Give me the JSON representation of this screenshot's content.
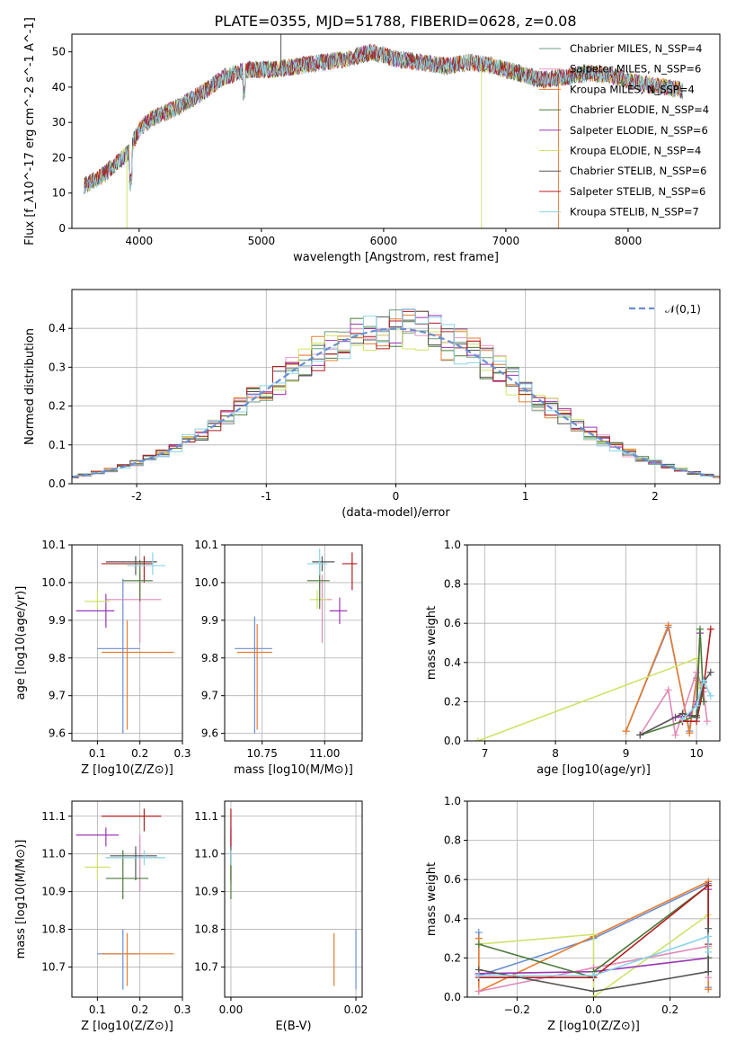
{
  "figure": {
    "title": "PLATE=0355, MJD=51788, FIBERID=0628, z=0.08"
  },
  "colors": {
    "c1": "#6b9a7f",
    "c2": "#e89ac8",
    "c3": "#e87c2f",
    "c4": "#4c7a3a",
    "c5": "#9b36b6",
    "c6": "#cde36a",
    "c7": "#555555",
    "c8": "#b31d20",
    "c9": "#8ad4e8",
    "blue": "#6a8fd0",
    "pink": "#e089b8",
    "grid": "#b0b0b0"
  },
  "chart_data": [
    {
      "id": "spectrum",
      "type": "line",
      "title": "PLATE=0355, MJD=51788, FIBERID=0628, z=0.08",
      "xlabel": "wavelength [Angstrom, rest frame]",
      "ylabel": "Flux [f_λ10^-17 erg cm^-2 s^-1 A^-1]",
      "xlim": [
        3450,
        8750
      ],
      "ylim": [
        0,
        55
      ],
      "xticks": [
        4000,
        5000,
        6000,
        7000,
        8000
      ],
      "yticks": [
        0,
        10,
        20,
        30,
        40,
        50
      ],
      "grid": false,
      "legend_position": "top-right",
      "legend": [
        "Chabrier MILES, N_SSP=4",
        "Salpeter MILES, N_SSP=6",
        "Kroupa MILES, N_SSP=4",
        "Chabrier ELODIE, N_SSP=4",
        "Salpeter ELODIE, N_SSP=6",
        "Kroupa ELODIE, N_SSP=4",
        "Chabrier STELIB, N_SSP=6",
        "Salpeter STELIB, N_SSP=6",
        "Kroupa STELIB, N_SSP=7"
      ],
      "continuum": {
        "x": [
          3550,
          3700,
          3900,
          4000,
          4100,
          4300,
          4500,
          4700,
          4900,
          5100,
          5300,
          5500,
          5700,
          5900,
          6100,
          6300,
          6500,
          6700,
          6900,
          7100,
          7300,
          7500,
          7700,
          7900,
          8100,
          8300,
          8450
        ],
        "y": [
          12,
          15,
          21,
          28,
          31,
          34,
          38,
          43,
          45,
          45,
          46,
          47,
          48,
          50,
          48,
          47,
          46,
          47,
          46,
          44,
          42,
          43,
          44,
          43,
          41,
          40,
          39
        ]
      },
      "features": [
        {
          "x": 5160,
          "y": 55,
          "series": "Chabrier STELIB"
        },
        {
          "x": 6800,
          "y": 0,
          "series": "Kroupa ELODIE"
        },
        {
          "x": 7430,
          "y": 0,
          "series": "Kroupa MILES"
        },
        {
          "x": 3900,
          "y": 0,
          "series": "Kroupa ELODIE"
        }
      ]
    },
    {
      "id": "residuals",
      "type": "step",
      "xlabel": "(data-model)/error",
      "ylabel": "Normed distribution",
      "xlim": [
        -2.5,
        2.5
      ],
      "ylim": [
        0,
        0.5
      ],
      "xticks": [
        -2,
        -1,
        0,
        1,
        2
      ],
      "yticks": [
        0.0,
        0.1,
        0.2,
        0.3,
        0.4
      ],
      "grid": true,
      "legend_position": "top-right",
      "legend": [
        "𝒩(0,1)"
      ],
      "reference": {
        "name": "𝒩(0,1)",
        "function": "normal",
        "mean": 0,
        "sigma": 1
      },
      "bin_width": 0.1
    },
    {
      "id": "age_vs_Z",
      "type": "scatter",
      "xlabel": "Z [log10(Z/Z⊙)]",
      "ylabel": "age  [log10(age/yr)]",
      "xlim": [
        0.04,
        0.3
      ],
      "ylim": [
        9.58,
        10.1
      ],
      "xticks": [
        0.1,
        0.2,
        0.3
      ],
      "yticks": [
        9.6,
        9.7,
        9.8,
        9.9,
        10.0,
        10.1
      ],
      "grid": true,
      "points": [
        {
          "x": 0.16,
          "y": 9.825,
          "xerr": [
            0.1,
            0.2
          ],
          "yerr": [
            9.6,
            10.01
          ],
          "color": "blue"
        },
        {
          "x": 0.17,
          "y": 9.815,
          "xerr": [
            0.11,
            0.28
          ],
          "yerr": [
            9.61,
            9.9
          ],
          "color": "c3"
        },
        {
          "x": 0.2,
          "y": 9.955,
          "xerr": [
            0.12,
            0.25
          ],
          "yerr": [
            9.84,
            10.03
          ],
          "color": "pink"
        },
        {
          "x": 0.12,
          "y": 9.925,
          "xerr": [
            0.05,
            0.14
          ],
          "yerr": [
            9.88,
            9.97
          ],
          "color": "c5"
        },
        {
          "x": 0.1,
          "y": 9.95,
          "xerr": [
            0.07,
            0.13
          ],
          "yerr": [
            9.93,
            9.98
          ],
          "color": "c6"
        },
        {
          "x": 0.21,
          "y": 10.05,
          "xerr": [
            0.11,
            0.23
          ],
          "yerr": [
            10.0,
            10.07
          ],
          "color": "c8"
        },
        {
          "x": 0.19,
          "y": 10.055,
          "xerr": [
            0.12,
            0.24
          ],
          "yerr": [
            10.02,
            10.07
          ],
          "color": "c7"
        },
        {
          "x": 0.2,
          "y": 10.005,
          "xerr": [
            0.16,
            0.23
          ],
          "yerr": [
            9.95,
            10.06
          ],
          "color": "c4"
        },
        {
          "x": 0.23,
          "y": 10.045,
          "xerr": [
            0.17,
            0.26
          ],
          "yerr": [
            10.02,
            10.08
          ],
          "color": "c9"
        }
      ]
    },
    {
      "id": "age_vs_mass",
      "type": "scatter",
      "xlabel": "mass [log10(M/M⊙)]",
      "ylabel": "",
      "xlim": [
        10.6,
        11.15
      ],
      "ylim": [
        9.58,
        10.1
      ],
      "xticks": [
        10.75,
        11.0
      ],
      "xtick_labels": [
        "10.75",
        "11.00"
      ],
      "yticks": [
        9.6,
        9.7,
        9.8,
        9.9,
        10.0,
        10.1
      ],
      "grid": true,
      "points": [
        {
          "x": 10.72,
          "y": 9.825,
          "xerr": [
            10.64,
            10.79
          ],
          "yerr": [
            9.6,
            9.91
          ],
          "color": "blue"
        },
        {
          "x": 10.73,
          "y": 9.815,
          "xerr": [
            10.65,
            10.79
          ],
          "yerr": [
            9.61,
            9.89
          ],
          "color": "c3"
        },
        {
          "x": 10.99,
          "y": 9.955,
          "xerr": [
            10.96,
            11.03
          ],
          "yerr": [
            9.84,
            10.02
          ],
          "color": "pink"
        },
        {
          "x": 11.06,
          "y": 9.925,
          "xerr": [
            11.02,
            11.09
          ],
          "yerr": [
            9.89,
            9.96
          ],
          "color": "c5"
        },
        {
          "x": 10.97,
          "y": 9.955,
          "xerr": [
            10.94,
            11.01
          ],
          "yerr": [
            9.93,
            9.98
          ],
          "color": "c6"
        },
        {
          "x": 11.11,
          "y": 10.05,
          "xerr": [
            11.07,
            11.13
          ],
          "yerr": [
            9.98,
            10.08
          ],
          "color": "c8"
        },
        {
          "x": 10.99,
          "y": 10.055,
          "xerr": [
            10.95,
            11.04
          ],
          "yerr": [
            10.03,
            10.07
          ],
          "color": "c7"
        },
        {
          "x": 10.98,
          "y": 10.005,
          "xerr": [
            10.93,
            11.02
          ],
          "yerr": [
            9.93,
            10.05
          ],
          "color": "c4"
        },
        {
          "x": 10.98,
          "y": 10.05,
          "xerr": [
            10.93,
            11.01
          ],
          "yerr": [
            10.02,
            10.09
          ],
          "color": "c9"
        }
      ]
    },
    {
      "id": "mass_weight_vs_age",
      "type": "line",
      "xlabel": "age  [log10(age/yr)]",
      "ylabel": "mass weight",
      "xlim": [
        6.75,
        10.33
      ],
      "ylim": [
        0,
        1.0
      ],
      "xticks": [
        7,
        8,
        9,
        10
      ],
      "yticks": [
        0.0,
        0.2,
        0.4,
        0.6,
        0.8,
        1.0
      ],
      "grid": true,
      "series": [
        {
          "color": "blue",
          "x": [
            9.0,
            9.6,
            9.9,
            10.0
          ],
          "y": [
            0.05,
            0.58,
            0.05,
            0.32
          ]
        },
        {
          "color": "c3",
          "x": [
            9.0,
            9.6,
            9.9,
            10.0
          ],
          "y": [
            0.05,
            0.59,
            0.04,
            0.31
          ]
        },
        {
          "color": "c6",
          "x": [
            6.9,
            10.0,
            10.05,
            10.1
          ],
          "y": [
            0.0,
            0.42,
            0.27,
            0.31
          ]
        },
        {
          "color": "pink",
          "x": [
            9.2,
            9.6,
            9.7,
            10.0,
            10.1,
            10.15
          ],
          "y": [
            0.03,
            0.26,
            0.03,
            0.35,
            0.25,
            0.1
          ]
        },
        {
          "color": "c5",
          "x": [
            9.7,
            9.9,
            10.0,
            10.05
          ],
          "y": [
            0.12,
            0.13,
            0.2,
            0.55
          ]
        },
        {
          "color": "c4",
          "x": [
            9.2,
            9.8,
            10.0,
            10.05,
            10.1
          ],
          "y": [
            0.03,
            0.1,
            0.13,
            0.57,
            0.2
          ]
        },
        {
          "color": "c8",
          "x": [
            9.8,
            10.0,
            10.1,
            10.2
          ],
          "y": [
            0.1,
            0.1,
            0.27,
            0.57
          ]
        },
        {
          "color": "c7",
          "x": [
            9.2,
            9.8,
            10.0,
            10.1,
            10.2
          ],
          "y": [
            0.03,
            0.14,
            0.12,
            0.3,
            0.35
          ]
        },
        {
          "color": "c9",
          "x": [
            9.8,
            10.0,
            10.1,
            10.2
          ],
          "y": [
            0.11,
            0.18,
            0.31,
            0.23
          ]
        }
      ]
    },
    {
      "id": "mass_vs_Z",
      "type": "scatter",
      "xlabel": "Z [log10(Z/Z⊙)]",
      "ylabel": "mass [log10(M/M⊙)]",
      "xlim": [
        0.04,
        0.3
      ],
      "ylim": [
        10.62,
        11.14
      ],
      "xticks": [
        0.1,
        0.2,
        0.3
      ],
      "yticks": [
        10.7,
        10.8,
        10.9,
        11.0,
        11.1
      ],
      "grid": true,
      "points": [
        {
          "x": 0.16,
          "y": 10.735,
          "xerr": [
            0.1,
            0.2
          ],
          "yerr": [
            10.64,
            10.8
          ],
          "color": "blue"
        },
        {
          "x": 0.17,
          "y": 10.735,
          "xerr": [
            0.11,
            0.28
          ],
          "yerr": [
            10.65,
            10.79
          ],
          "color": "c3"
        },
        {
          "x": 0.2,
          "y": 10.99,
          "xerr": [
            0.12,
            0.25
          ],
          "yerr": [
            10.9,
            11.05
          ],
          "color": "pink"
        },
        {
          "x": 0.12,
          "y": 11.05,
          "xerr": [
            0.05,
            0.15
          ],
          "yerr": [
            11.02,
            11.07
          ],
          "color": "c5"
        },
        {
          "x": 0.1,
          "y": 10.965,
          "xerr": [
            0.07,
            0.13
          ],
          "yerr": [
            10.93,
            11.0
          ],
          "color": "c6"
        },
        {
          "x": 0.21,
          "y": 11.1,
          "xerr": [
            0.11,
            0.25
          ],
          "yerr": [
            11.06,
            11.12
          ],
          "color": "c8"
        },
        {
          "x": 0.19,
          "y": 10.995,
          "xerr": [
            0.13,
            0.24
          ],
          "yerr": [
            10.93,
            11.02
          ],
          "color": "c7"
        },
        {
          "x": 0.16,
          "y": 10.935,
          "xerr": [
            0.12,
            0.22
          ],
          "yerr": [
            10.88,
            11.01
          ],
          "color": "c4"
        },
        {
          "x": 0.21,
          "y": 10.99,
          "xerr": [
            0.12,
            0.26
          ],
          "yerr": [
            10.97,
            11.01
          ],
          "color": "c9"
        }
      ]
    },
    {
      "id": "mass_vs_ebv",
      "type": "scatter",
      "xlabel": "E(B-V)",
      "ylabel": "",
      "xlim": [
        -0.001,
        0.021
      ],
      "ylim": [
        10.62,
        11.14
      ],
      "xticks": [
        0.0,
        0.02
      ],
      "xtick_labels": [
        "0.00",
        "0.02"
      ],
      "yticks": [
        10.7,
        10.8,
        10.9,
        11.0,
        11.1
      ],
      "grid": true,
      "points": [
        {
          "x": 0.02,
          "y": 10.73,
          "yerr": [
            10.64,
            10.8
          ],
          "color": "blue"
        },
        {
          "x": 0.0165,
          "y": 10.72,
          "yerr": [
            10.65,
            10.79
          ],
          "color": "c3"
        },
        {
          "x": 0.0,
          "y": 10.99,
          "yerr": [
            10.92,
            11.05
          ],
          "color": "pink"
        },
        {
          "x": 0.0,
          "y": 11.05,
          "yerr": [
            11.02,
            11.07
          ],
          "color": "c5"
        },
        {
          "x": 0.0,
          "y": 10.96,
          "yerr": [
            10.93,
            11.0
          ],
          "color": "c6"
        },
        {
          "x": 0.0,
          "y": 11.08,
          "yerr": [
            11.02,
            11.12
          ],
          "color": "c8"
        },
        {
          "x": 0.0,
          "y": 10.99,
          "yerr": [
            10.93,
            11.02
          ],
          "color": "c7"
        },
        {
          "x": 0.0,
          "y": 10.93,
          "yerr": [
            10.88,
            11.01
          ],
          "color": "c4"
        },
        {
          "x": 0.0,
          "y": 10.99,
          "yerr": [
            10.97,
            11.01
          ],
          "color": "c9"
        }
      ]
    },
    {
      "id": "mass_weight_vs_Z",
      "type": "line",
      "xlabel": "Z [log10(Z/Z⊙)]",
      "ylabel": "mass weight",
      "xlim": [
        -0.33,
        0.33
      ],
      "ylim": [
        0,
        1.0
      ],
      "xticks": [
        -0.2,
        0.0,
        0.2
      ],
      "xtick_labels": [
        "−0.2",
        "0.0",
        "0.2"
      ],
      "yticks": [
        0.0,
        0.2,
        0.4,
        0.6,
        0.8,
        1.0
      ],
      "grid": true,
      "series": [
        {
          "color": "blue",
          "x": [
            -0.3,
            -0.3,
            0.0,
            0.3,
            0.3
          ],
          "y": [
            0.33,
            0.11,
            0.3,
            0.58,
            0.05
          ]
        },
        {
          "color": "c3",
          "x": [
            -0.3,
            -0.3,
            0.0,
            0.3,
            0.3
          ],
          "y": [
            0.3,
            0.03,
            0.31,
            0.59,
            0.04
          ]
        },
        {
          "color": "c6",
          "x": [
            -0.3,
            0.0,
            0.0,
            0.3,
            0.3
          ],
          "y": [
            0.27,
            0.32,
            0.0,
            0.42,
            0.25
          ]
        },
        {
          "color": "pink",
          "x": [
            -0.3,
            0.0,
            0.3,
            0.3
          ],
          "y": [
            0.03,
            0.15,
            0.26,
            0.1
          ]
        },
        {
          "color": "c5",
          "x": [
            -0.3,
            0.0,
            0.3,
            0.3
          ],
          "y": [
            0.12,
            0.13,
            0.2,
            0.55
          ]
        },
        {
          "color": "c4",
          "x": [
            -0.3,
            0.0,
            0.0,
            0.3,
            0.3
          ],
          "y": [
            0.27,
            0.1,
            0.13,
            0.57,
            0.2
          ]
        },
        {
          "color": "c8",
          "x": [
            -0.3,
            0.0,
            0.3,
            0.3
          ],
          "y": [
            0.1,
            0.1,
            0.57,
            0.27
          ]
        },
        {
          "color": "c7",
          "x": [
            -0.3,
            0.0,
            0.3,
            0.3
          ],
          "y": [
            0.14,
            0.03,
            0.13,
            0.35
          ]
        },
        {
          "color": "c9",
          "x": [
            -0.3,
            0.0,
            0.3,
            0.3
          ],
          "y": [
            0.11,
            0.11,
            0.31,
            0.23
          ]
        }
      ]
    }
  ]
}
